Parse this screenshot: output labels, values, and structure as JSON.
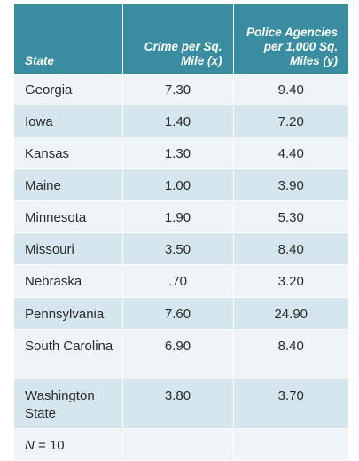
{
  "table": {
    "headers": {
      "state": "State",
      "crime": "Crime per Sq. Mile (x)",
      "police": "Police Agencies per 1,000 Sq. Miles (y)"
    },
    "rows": [
      {
        "state": "Georgia",
        "crime": "7.30",
        "police": "9.40"
      },
      {
        "state": "Iowa",
        "crime": "1.40",
        "police": "7.20"
      },
      {
        "state": "Kansas",
        "crime": "1.30",
        "police": "4.40"
      },
      {
        "state": "Maine",
        "crime": "1.00",
        "police": "3.90"
      },
      {
        "state": "Minnesota",
        "crime": "1.90",
        "police": "5.30"
      },
      {
        "state": "Missouri",
        "crime": "3.50",
        "police": "8.40"
      },
      {
        "state": "Nebraska",
        "crime": ".70",
        "police": "3.20"
      },
      {
        "state": "Pennsylvania",
        "crime": "7.60",
        "police": "24.90"
      },
      {
        "state": "South Carolina",
        "crime": "6.90",
        "police": "8.40"
      },
      {
        "state": "Washington State",
        "crime": "3.80",
        "police": "3.70"
      }
    ],
    "footer": {
      "n_symbol": "N",
      "n_value": "= 10"
    },
    "colors": {
      "header_bg": "#3a8da0",
      "row_light": "#eef4f8",
      "row_dark": "#d6e6ee"
    }
  }
}
